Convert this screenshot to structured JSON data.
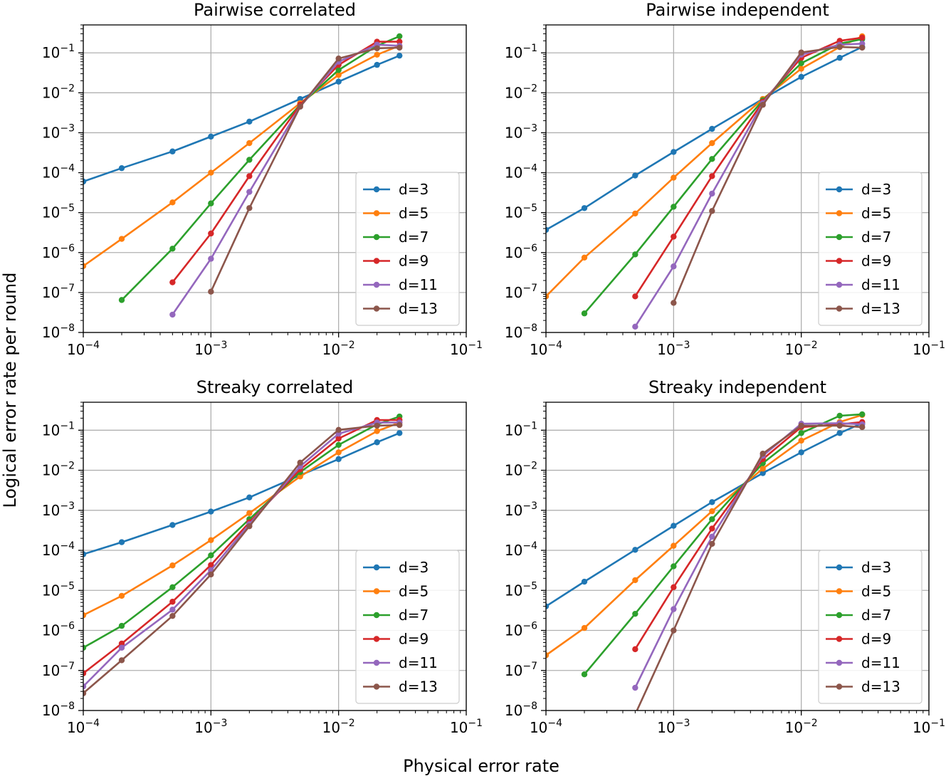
{
  "figure": {
    "xlabel": "Physical error rate",
    "ylabel": "Logical error rate per round"
  },
  "chart_data": [
    {
      "type": "line",
      "title": "Pairwise correlated",
      "xscale": "log",
      "yscale": "log",
      "xlim": [
        0.0001,
        0.1
      ],
      "ylim": [
        1e-08,
        0.5
      ],
      "grid": true,
      "legend_position": "lower-right",
      "series": [
        {
          "name": "d=3",
          "color": "#1f77b4",
          "x": [
            0.0001,
            0.0002,
            0.0005,
            0.001,
            0.002,
            0.005,
            0.01,
            0.02,
            0.03
          ],
          "y": [
            6e-05,
            0.00013,
            0.00034,
            0.0008,
            0.0019,
            0.007,
            0.019,
            0.05,
            0.085
          ]
        },
        {
          "name": "d=5",
          "color": "#ff7f0e",
          "x": [
            0.0001,
            0.0002,
            0.0005,
            0.001,
            0.002,
            0.005,
            0.01,
            0.02,
            0.03
          ],
          "y": [
            4.6e-07,
            2.2e-06,
            1.8e-05,
            0.0001,
            0.00055,
            0.0055,
            0.028,
            0.09,
            0.15
          ]
        },
        {
          "name": "d=7",
          "color": "#2ca02c",
          "x": [
            0.0002,
            0.0005,
            0.001,
            0.002,
            0.005,
            0.01,
            0.02,
            0.03
          ],
          "y": [
            6.5e-08,
            1.25e-06,
            1.7e-05,
            0.00021,
            0.005,
            0.037,
            0.15,
            0.26
          ]
        },
        {
          "name": "d=9",
          "color": "#d62728",
          "x": [
            0.0005,
            0.001,
            0.002,
            0.005,
            0.01,
            0.02,
            0.03
          ],
          "y": [
            1.8e-07,
            3e-06,
            8.2e-05,
            0.005,
            0.05,
            0.19,
            0.19
          ]
        },
        {
          "name": "d=11",
          "color": "#9467bd",
          "x": [
            0.0005,
            0.001,
            0.002,
            0.005,
            0.01,
            0.02,
            0.03
          ],
          "y": [
            2.8e-08,
            7e-07,
            3.3e-05,
            0.0045,
            0.06,
            0.16,
            0.15
          ]
        },
        {
          "name": "d=13",
          "color": "#8c564b",
          "x": [
            0.001,
            0.002,
            0.005,
            0.01,
            0.02,
            0.03
          ],
          "y": [
            1.05e-07,
            1.3e-05,
            0.0045,
            0.072,
            0.13,
            0.135
          ]
        }
      ]
    },
    {
      "type": "line",
      "title": "Pairwise independent",
      "xscale": "log",
      "yscale": "log",
      "xlim": [
        0.0001,
        0.1
      ],
      "ylim": [
        1e-08,
        0.5
      ],
      "grid": true,
      "legend_position": "lower-right",
      "series": [
        {
          "name": "d=3",
          "color": "#1f77b4",
          "x": [
            0.0001,
            0.0002,
            0.0005,
            0.001,
            0.002,
            0.005,
            0.01,
            0.02,
            0.03
          ],
          "y": [
            3.7e-06,
            1.3e-05,
            8.5e-05,
            0.00033,
            0.00125,
            0.007,
            0.025,
            0.075,
            0.14
          ]
        },
        {
          "name": "d=5",
          "color": "#ff7f0e",
          "x": [
            0.0001,
            0.0002,
            0.0005,
            0.001,
            0.002,
            0.005,
            0.01,
            0.02,
            0.03
          ],
          "y": [
            8e-08,
            7.5e-07,
            9.5e-06,
            7.5e-05,
            0.00055,
            0.007,
            0.04,
            0.14,
            0.26
          ]
        },
        {
          "name": "d=7",
          "color": "#2ca02c",
          "x": [
            0.0002,
            0.0005,
            0.001,
            0.002,
            0.005,
            0.01,
            0.02,
            0.03
          ],
          "y": [
            3e-08,
            9e-07,
            1.4e-05,
            0.00022,
            0.0065,
            0.055,
            0.17,
            0.22
          ]
        },
        {
          "name": "d=9",
          "color": "#d62728",
          "x": [
            0.0005,
            0.001,
            0.002,
            0.005,
            0.01,
            0.02,
            0.03
          ],
          "y": [
            8e-08,
            2.5e-06,
            8.2e-05,
            0.006,
            0.075,
            0.2,
            0.24
          ]
        },
        {
          "name": "d=11",
          "color": "#9467bd",
          "x": [
            0.0005,
            0.001,
            0.002,
            0.005,
            0.01,
            0.02,
            0.03
          ],
          "y": [
            1.4e-08,
            4.5e-07,
            3e-05,
            0.0055,
            0.09,
            0.16,
            0.17
          ]
        },
        {
          "name": "d=13",
          "color": "#8c564b",
          "x": [
            0.001,
            0.002,
            0.005,
            0.01,
            0.02,
            0.03
          ],
          "y": [
            5.5e-08,
            1.1e-05,
            0.005,
            0.102,
            0.14,
            0.135
          ]
        }
      ]
    },
    {
      "type": "line",
      "title": "Streaky correlated",
      "xscale": "log",
      "yscale": "log",
      "xlim": [
        0.0001,
        0.1
      ],
      "ylim": [
        1e-08,
        0.5
      ],
      "grid": true,
      "legend_position": "lower-right",
      "series": [
        {
          "name": "d=3",
          "color": "#1f77b4",
          "x": [
            0.0001,
            0.0002,
            0.0005,
            0.001,
            0.002,
            0.005,
            0.01,
            0.02,
            0.03
          ],
          "y": [
            8e-05,
            0.00016,
            0.00043,
            0.00093,
            0.0021,
            0.0075,
            0.019,
            0.05,
            0.085
          ]
        },
        {
          "name": "d=5",
          "color": "#ff7f0e",
          "x": [
            0.0001,
            0.0002,
            0.0005,
            0.001,
            0.002,
            0.005,
            0.01,
            0.02,
            0.03
          ],
          "y": [
            2.4e-06,
            7.3e-06,
            4.2e-05,
            0.00018,
            0.00085,
            0.007,
            0.028,
            0.095,
            0.155
          ]
        },
        {
          "name": "d=7",
          "color": "#2ca02c",
          "x": [
            0.0001,
            0.0002,
            0.0005,
            0.001,
            0.002,
            0.005,
            0.01,
            0.02,
            0.03
          ],
          "y": [
            3.7e-07,
            1.3e-06,
            1.2e-05,
            7.5e-05,
            0.0006,
            0.009,
            0.043,
            0.14,
            0.22
          ]
        },
        {
          "name": "d=9",
          "color": "#d62728",
          "x": [
            0.0001,
            0.0002,
            0.0005,
            0.001,
            0.002,
            0.005,
            0.01,
            0.02,
            0.03
          ],
          "y": [
            8.5e-08,
            4.7e-07,
            5.2e-06,
            4.3e-05,
            0.0005,
            0.0105,
            0.062,
            0.18,
            0.18
          ]
        },
        {
          "name": "d=11",
          "color": "#9467bd",
          "x": [
            0.0001,
            0.0002,
            0.0005,
            0.001,
            0.002,
            0.005,
            0.01,
            0.02,
            0.03
          ],
          "y": [
            4e-08,
            3.7e-07,
            3.3e-06,
            3.2e-05,
            0.00045,
            0.0125,
            0.082,
            0.155,
            0.155
          ]
        },
        {
          "name": "d=13",
          "color": "#8c564b",
          "x": [
            0.0001,
            0.0002,
            0.0005,
            0.001,
            0.002,
            0.005,
            0.01,
            0.02,
            0.03
          ],
          "y": [
            2.7e-08,
            1.8e-07,
            2.3e-06,
            2.5e-05,
            0.0004,
            0.0155,
            0.102,
            0.13,
            0.135
          ]
        }
      ]
    },
    {
      "type": "line",
      "title": "Streaky independent",
      "xscale": "log",
      "yscale": "log",
      "xlim": [
        0.0001,
        0.1
      ],
      "ylim": [
        1e-08,
        0.5
      ],
      "grid": true,
      "legend_position": "lower-right",
      "series": [
        {
          "name": "d=3",
          "color": "#1f77b4",
          "x": [
            0.0001,
            0.0002,
            0.0005,
            0.001,
            0.002,
            0.005,
            0.01,
            0.02,
            0.03
          ],
          "y": [
            4e-06,
            1.65e-05,
            0.000103,
            0.00041,
            0.0016,
            0.0085,
            0.028,
            0.085,
            0.15
          ]
        },
        {
          "name": "d=5",
          "color": "#ff7f0e",
          "x": [
            0.0001,
            0.0002,
            0.0005,
            0.001,
            0.002,
            0.005,
            0.01,
            0.02,
            0.03
          ],
          "y": [
            2.4e-07,
            1.15e-06,
            1.8e-05,
            0.00013,
            0.00095,
            0.011,
            0.055,
            0.16,
            0.24
          ]
        },
        {
          "name": "d=7",
          "color": "#2ca02c",
          "x": [
            0.0002,
            0.0005,
            0.001,
            0.002,
            0.005,
            0.01,
            0.02,
            0.03
          ],
          "y": [
            8e-08,
            2.6e-06,
            4e-05,
            0.0006,
            0.015,
            0.085,
            0.23,
            0.25
          ]
        },
        {
          "name": "d=9",
          "color": "#d62728",
          "x": [
            0.0005,
            0.001,
            0.002,
            0.005,
            0.01,
            0.02,
            0.03
          ],
          "y": [
            3.4e-07,
            1.2e-05,
            0.00035,
            0.019,
            0.12,
            0.14,
            0.16
          ]
        },
        {
          "name": "d=11",
          "color": "#9467bd",
          "x": [
            0.0005,
            0.001,
            0.002,
            0.005,
            0.01,
            0.02,
            0.03
          ],
          "y": [
            3.7e-08,
            3.4e-06,
            0.00022,
            0.023,
            0.145,
            0.15,
            0.14
          ]
        },
        {
          "name": "d=13",
          "color": "#8c564b",
          "x": [
            0.0005,
            0.001,
            0.002,
            0.005,
            0.01,
            0.02,
            0.03
          ],
          "y": [
            8e-09,
            1e-06,
            0.000145,
            0.026,
            0.13,
            0.13,
            0.12
          ]
        }
      ]
    }
  ]
}
